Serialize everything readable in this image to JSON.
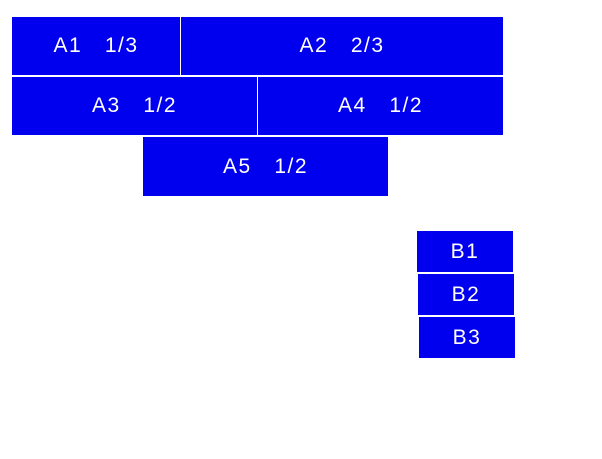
{
  "color": "#0000ee",
  "group_a": [
    {
      "label": "A1  1/3"
    },
    {
      "label": "A2  2/3"
    },
    {
      "label": "A3  1/2"
    },
    {
      "label": "A4  1/2"
    },
    {
      "label": "A5  1/2"
    }
  ],
  "group_b": [
    {
      "label": "B1"
    },
    {
      "label": "B2"
    },
    {
      "label": "B3"
    }
  ]
}
